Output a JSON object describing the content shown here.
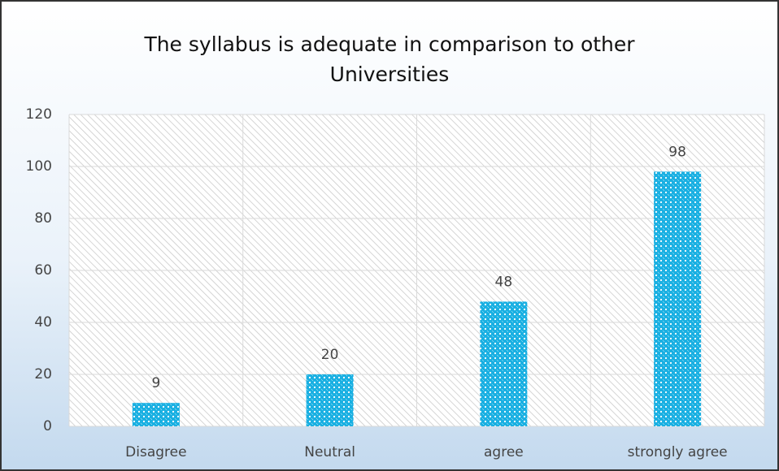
{
  "chart_data": {
    "type": "bar",
    "title": "The syllabus is adequate in comparison to other Universities",
    "categories": [
      "Disagree",
      "Neutral",
      "agree",
      "strongly agree"
    ],
    "values": [
      9,
      20,
      48,
      98
    ],
    "color": "#1ab0e2",
    "ylim": [
      0,
      120
    ],
    "yticks": [
      0,
      20,
      40,
      60,
      80,
      100,
      120
    ],
    "grid": true
  }
}
